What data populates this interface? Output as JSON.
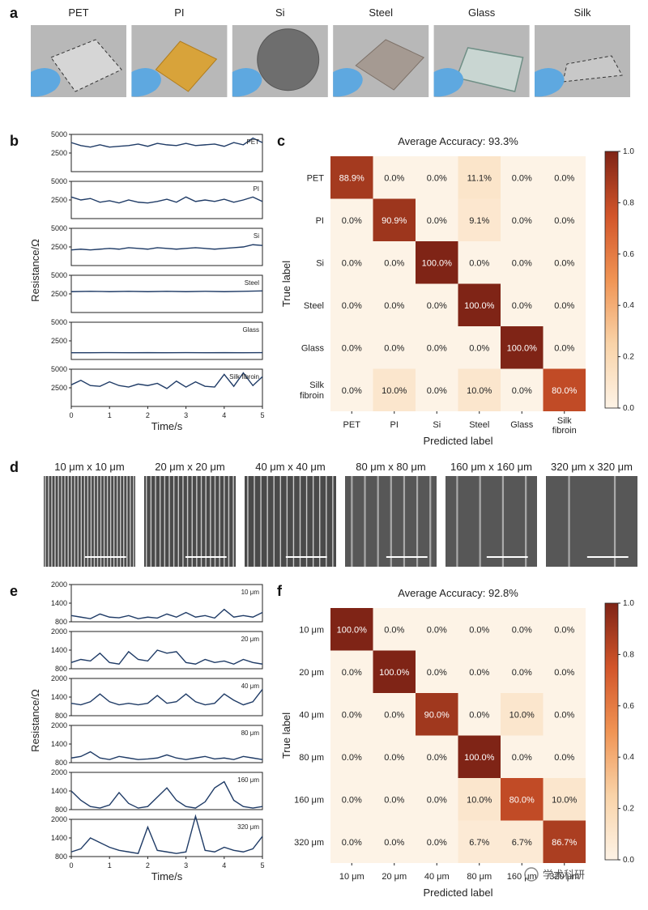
{
  "panel_labels": [
    "a",
    "b",
    "c",
    "d",
    "e",
    "f"
  ],
  "photos": {
    "labels": [
      "PET",
      "PI",
      "Si",
      "Steel",
      "Glass",
      "Silk"
    ]
  },
  "sem": {
    "labels": [
      "10 μm x 10 μm",
      "20 μm x 20 μm",
      "40 μm x 40 μm",
      "80 μm x 80 μm",
      "160 μm x 160 μm",
      "320 μm x 320 μm"
    ],
    "stripes": [
      28,
      20,
      14,
      7,
      4,
      2
    ]
  },
  "watermark": "学术科研",
  "colorbar_ticks": [
    "0.0",
    "0.2",
    "0.4",
    "0.6",
    "0.8",
    "1.0"
  ],
  "chart_data": [
    {
      "type": "line",
      "panel": "b",
      "xlabel": "Time/s",
      "ylabel": "Resistance/Ω",
      "xlim": [
        0,
        5
      ],
      "xticks": [
        "0",
        "1",
        "2",
        "3",
        "4",
        "5"
      ],
      "ylim": [
        0,
        5000
      ],
      "yticks": [
        "2500",
        "5000"
      ],
      "series": [
        {
          "name": "PET",
          "x": [
            0,
            0.25,
            0.5,
            0.75,
            1,
            1.25,
            1.5,
            1.75,
            2,
            2.25,
            2.5,
            2.75,
            3,
            3.25,
            3.5,
            3.75,
            4,
            4.25,
            4.5,
            4.75,
            5
          ],
          "values": [
            3900,
            3500,
            3300,
            3600,
            3300,
            3400,
            3500,
            3700,
            3400,
            3800,
            3600,
            3500,
            3800,
            3500,
            3600,
            3700,
            3400,
            3900,
            3600,
            4500,
            3900
          ]
        },
        {
          "name": "PI",
          "x": [
            0,
            0.25,
            0.5,
            0.75,
            1,
            1.25,
            1.5,
            1.75,
            2,
            2.25,
            2.5,
            2.75,
            3,
            3.25,
            3.5,
            3.75,
            4,
            4.25,
            4.5,
            4.75,
            5
          ],
          "values": [
            2900,
            2500,
            2700,
            2200,
            2400,
            2100,
            2500,
            2200,
            2100,
            2300,
            2600,
            2200,
            2900,
            2300,
            2500,
            2300,
            2600,
            2200,
            2500,
            2900,
            2300
          ]
        },
        {
          "name": "Si",
          "x": [
            0,
            0.25,
            0.5,
            0.75,
            1,
            1.25,
            1.5,
            1.75,
            2,
            2.25,
            2.5,
            2.75,
            3,
            3.25,
            3.5,
            3.75,
            4,
            4.25,
            4.5,
            4.75,
            5
          ],
          "values": [
            2100,
            2200,
            2100,
            2200,
            2300,
            2200,
            2400,
            2300,
            2200,
            2400,
            2300,
            2200,
            2300,
            2400,
            2300,
            2200,
            2300,
            2400,
            2500,
            2800,
            2700
          ]
        },
        {
          "name": "Steel",
          "x": [
            0,
            0.5,
            1,
            1.5,
            2,
            2.5,
            3,
            3.5,
            4,
            4.5,
            5
          ],
          "values": [
            2800,
            2850,
            2800,
            2850,
            2800,
            2850,
            2800,
            2850,
            2800,
            2850,
            2900
          ]
        },
        {
          "name": "Glass",
          "x": [
            0,
            0.5,
            1,
            1.5,
            2,
            2.5,
            3,
            3.5,
            4,
            4.5,
            5
          ],
          "values": [
            900,
            900,
            920,
            900,
            910,
            900,
            920,
            900,
            910,
            900,
            920
          ]
        },
        {
          "name": "Silk fibroin",
          "x": [
            0,
            0.25,
            0.5,
            0.75,
            1,
            1.25,
            1.5,
            1.75,
            2,
            2.25,
            2.5,
            2.75,
            3,
            3.25,
            3.5,
            3.75,
            4,
            4.25,
            4.5,
            4.75,
            5
          ],
          "values": [
            2900,
            3500,
            2800,
            2700,
            3300,
            2800,
            2600,
            3000,
            2800,
            3100,
            2400,
            3400,
            2600,
            3300,
            2700,
            2600,
            4300,
            2700,
            4500,
            2800,
            4000
          ]
        }
      ]
    },
    {
      "type": "heatmap",
      "panel": "c",
      "title": "Average Accuracy: 93.3%",
      "xlabel": "Predicted label",
      "ylabel": "True label",
      "categories": [
        "PET",
        "PI",
        "Si",
        "Steel",
        "Glass",
        "Silk fibroin"
      ],
      "values": [
        [
          88.9,
          0.0,
          0.0,
          11.1,
          0.0,
          0.0
        ],
        [
          0.0,
          90.9,
          0.0,
          9.1,
          0.0,
          0.0
        ],
        [
          0.0,
          0.0,
          100.0,
          0.0,
          0.0,
          0.0
        ],
        [
          0.0,
          0.0,
          0.0,
          100.0,
          0.0,
          0.0
        ],
        [
          0.0,
          0.0,
          0.0,
          0.0,
          100.0,
          0.0
        ],
        [
          0.0,
          10.0,
          0.0,
          10.0,
          0.0,
          80.0
        ]
      ],
      "zlim": [
        0,
        1
      ]
    },
    {
      "type": "line",
      "panel": "e",
      "xlabel": "Time/s",
      "ylabel": "Resistance/Ω",
      "xlim": [
        0,
        5
      ],
      "xticks": [
        "0",
        "1",
        "2",
        "3",
        "4",
        "5"
      ],
      "ylim": [
        800,
        2000
      ],
      "yticks": [
        "800",
        "1400",
        "2000"
      ],
      "series": [
        {
          "name": "10 μm",
          "x": [
            0,
            0.25,
            0.5,
            0.75,
            1,
            1.25,
            1.5,
            1.75,
            2,
            2.25,
            2.5,
            2.75,
            3,
            3.25,
            3.5,
            3.75,
            4,
            4.25,
            4.5,
            4.75,
            5
          ],
          "values": [
            1000,
            950,
            900,
            1050,
            950,
            930,
            1000,
            900,
            950,
            920,
            1050,
            950,
            1100,
            950,
            1000,
            920,
            1200,
            950,
            1000,
            950,
            1100
          ]
        },
        {
          "name": "20 μm",
          "x": [
            0,
            0.25,
            0.5,
            0.75,
            1,
            1.25,
            1.5,
            1.75,
            2,
            2.25,
            2.5,
            2.75,
            3,
            3.25,
            3.5,
            3.75,
            4,
            4.25,
            4.5,
            4.75,
            5
          ],
          "values": [
            1000,
            1100,
            1050,
            1300,
            1000,
            950,
            1350,
            1100,
            1050,
            1400,
            1300,
            1350,
            1000,
            950,
            1100,
            1000,
            1050,
            950,
            1100,
            1000,
            950
          ]
        },
        {
          "name": "40 μm",
          "x": [
            0,
            0.25,
            0.5,
            0.75,
            1,
            1.25,
            1.5,
            1.75,
            2,
            2.25,
            2.5,
            2.75,
            3,
            3.25,
            3.5,
            3.75,
            4,
            4.25,
            4.5,
            4.75,
            5
          ],
          "values": [
            1200,
            1150,
            1250,
            1500,
            1250,
            1150,
            1200,
            1150,
            1200,
            1450,
            1200,
            1250,
            1500,
            1250,
            1150,
            1200,
            1500,
            1300,
            1150,
            1250,
            1650
          ]
        },
        {
          "name": "80 μm",
          "x": [
            0,
            0.25,
            0.5,
            0.75,
            1,
            1.25,
            1.5,
            1.75,
            2,
            2.25,
            2.5,
            2.75,
            3,
            3.25,
            3.5,
            3.75,
            4,
            4.25,
            4.5,
            4.75,
            5
          ],
          "values": [
            950,
            1000,
            1150,
            950,
            900,
            1000,
            950,
            900,
            920,
            950,
            1050,
            950,
            900,
            950,
            1000,
            920,
            950,
            900,
            1000,
            950,
            900
          ]
        },
        {
          "name": "160 μm",
          "x": [
            0,
            0.25,
            0.5,
            0.75,
            1,
            1.25,
            1.5,
            1.75,
            2,
            2.25,
            2.5,
            2.75,
            3,
            3.25,
            3.5,
            3.75,
            4,
            4.25,
            4.5,
            4.75,
            5
          ],
          "values": [
            1400,
            1100,
            900,
            850,
            950,
            1350,
            1000,
            850,
            900,
            1200,
            1500,
            1100,
            900,
            850,
            1050,
            1500,
            1700,
            1100,
            900,
            850,
            900
          ]
        },
        {
          "name": "320 μm",
          "x": [
            0,
            0.25,
            0.5,
            0.75,
            1,
            1.25,
            1.5,
            1.75,
            2,
            2.25,
            2.5,
            2.75,
            3,
            3.25,
            3.5,
            3.75,
            4,
            4.25,
            4.5,
            4.75,
            5
          ],
          "values": [
            950,
            1050,
            1400,
            1250,
            1100,
            1000,
            950,
            900,
            1750,
            1000,
            950,
            900,
            950,
            2100,
            1000,
            950,
            1100,
            1000,
            950,
            1050,
            1450
          ]
        }
      ]
    },
    {
      "type": "heatmap",
      "panel": "f",
      "title": "Average Accuracy: 92.8%",
      "xlabel": "Predicted label",
      "ylabel": "True label",
      "categories": [
        "10 μm",
        "20 μm",
        "40 μm",
        "80 μm",
        "160 μm",
        "320 μm"
      ],
      "values": [
        [
          100.0,
          0.0,
          0.0,
          0.0,
          0.0,
          0.0
        ],
        [
          0.0,
          100.0,
          0.0,
          0.0,
          0.0,
          0.0
        ],
        [
          0.0,
          0.0,
          90.0,
          0.0,
          10.0,
          0.0
        ],
        [
          0.0,
          0.0,
          0.0,
          100.0,
          0.0,
          0.0
        ],
        [
          0.0,
          0.0,
          0.0,
          10.0,
          80.0,
          10.0
        ],
        [
          0.0,
          0.0,
          0.0,
          6.7,
          6.7,
          86.7
        ]
      ],
      "zlim": [
        0,
        1
      ]
    }
  ]
}
